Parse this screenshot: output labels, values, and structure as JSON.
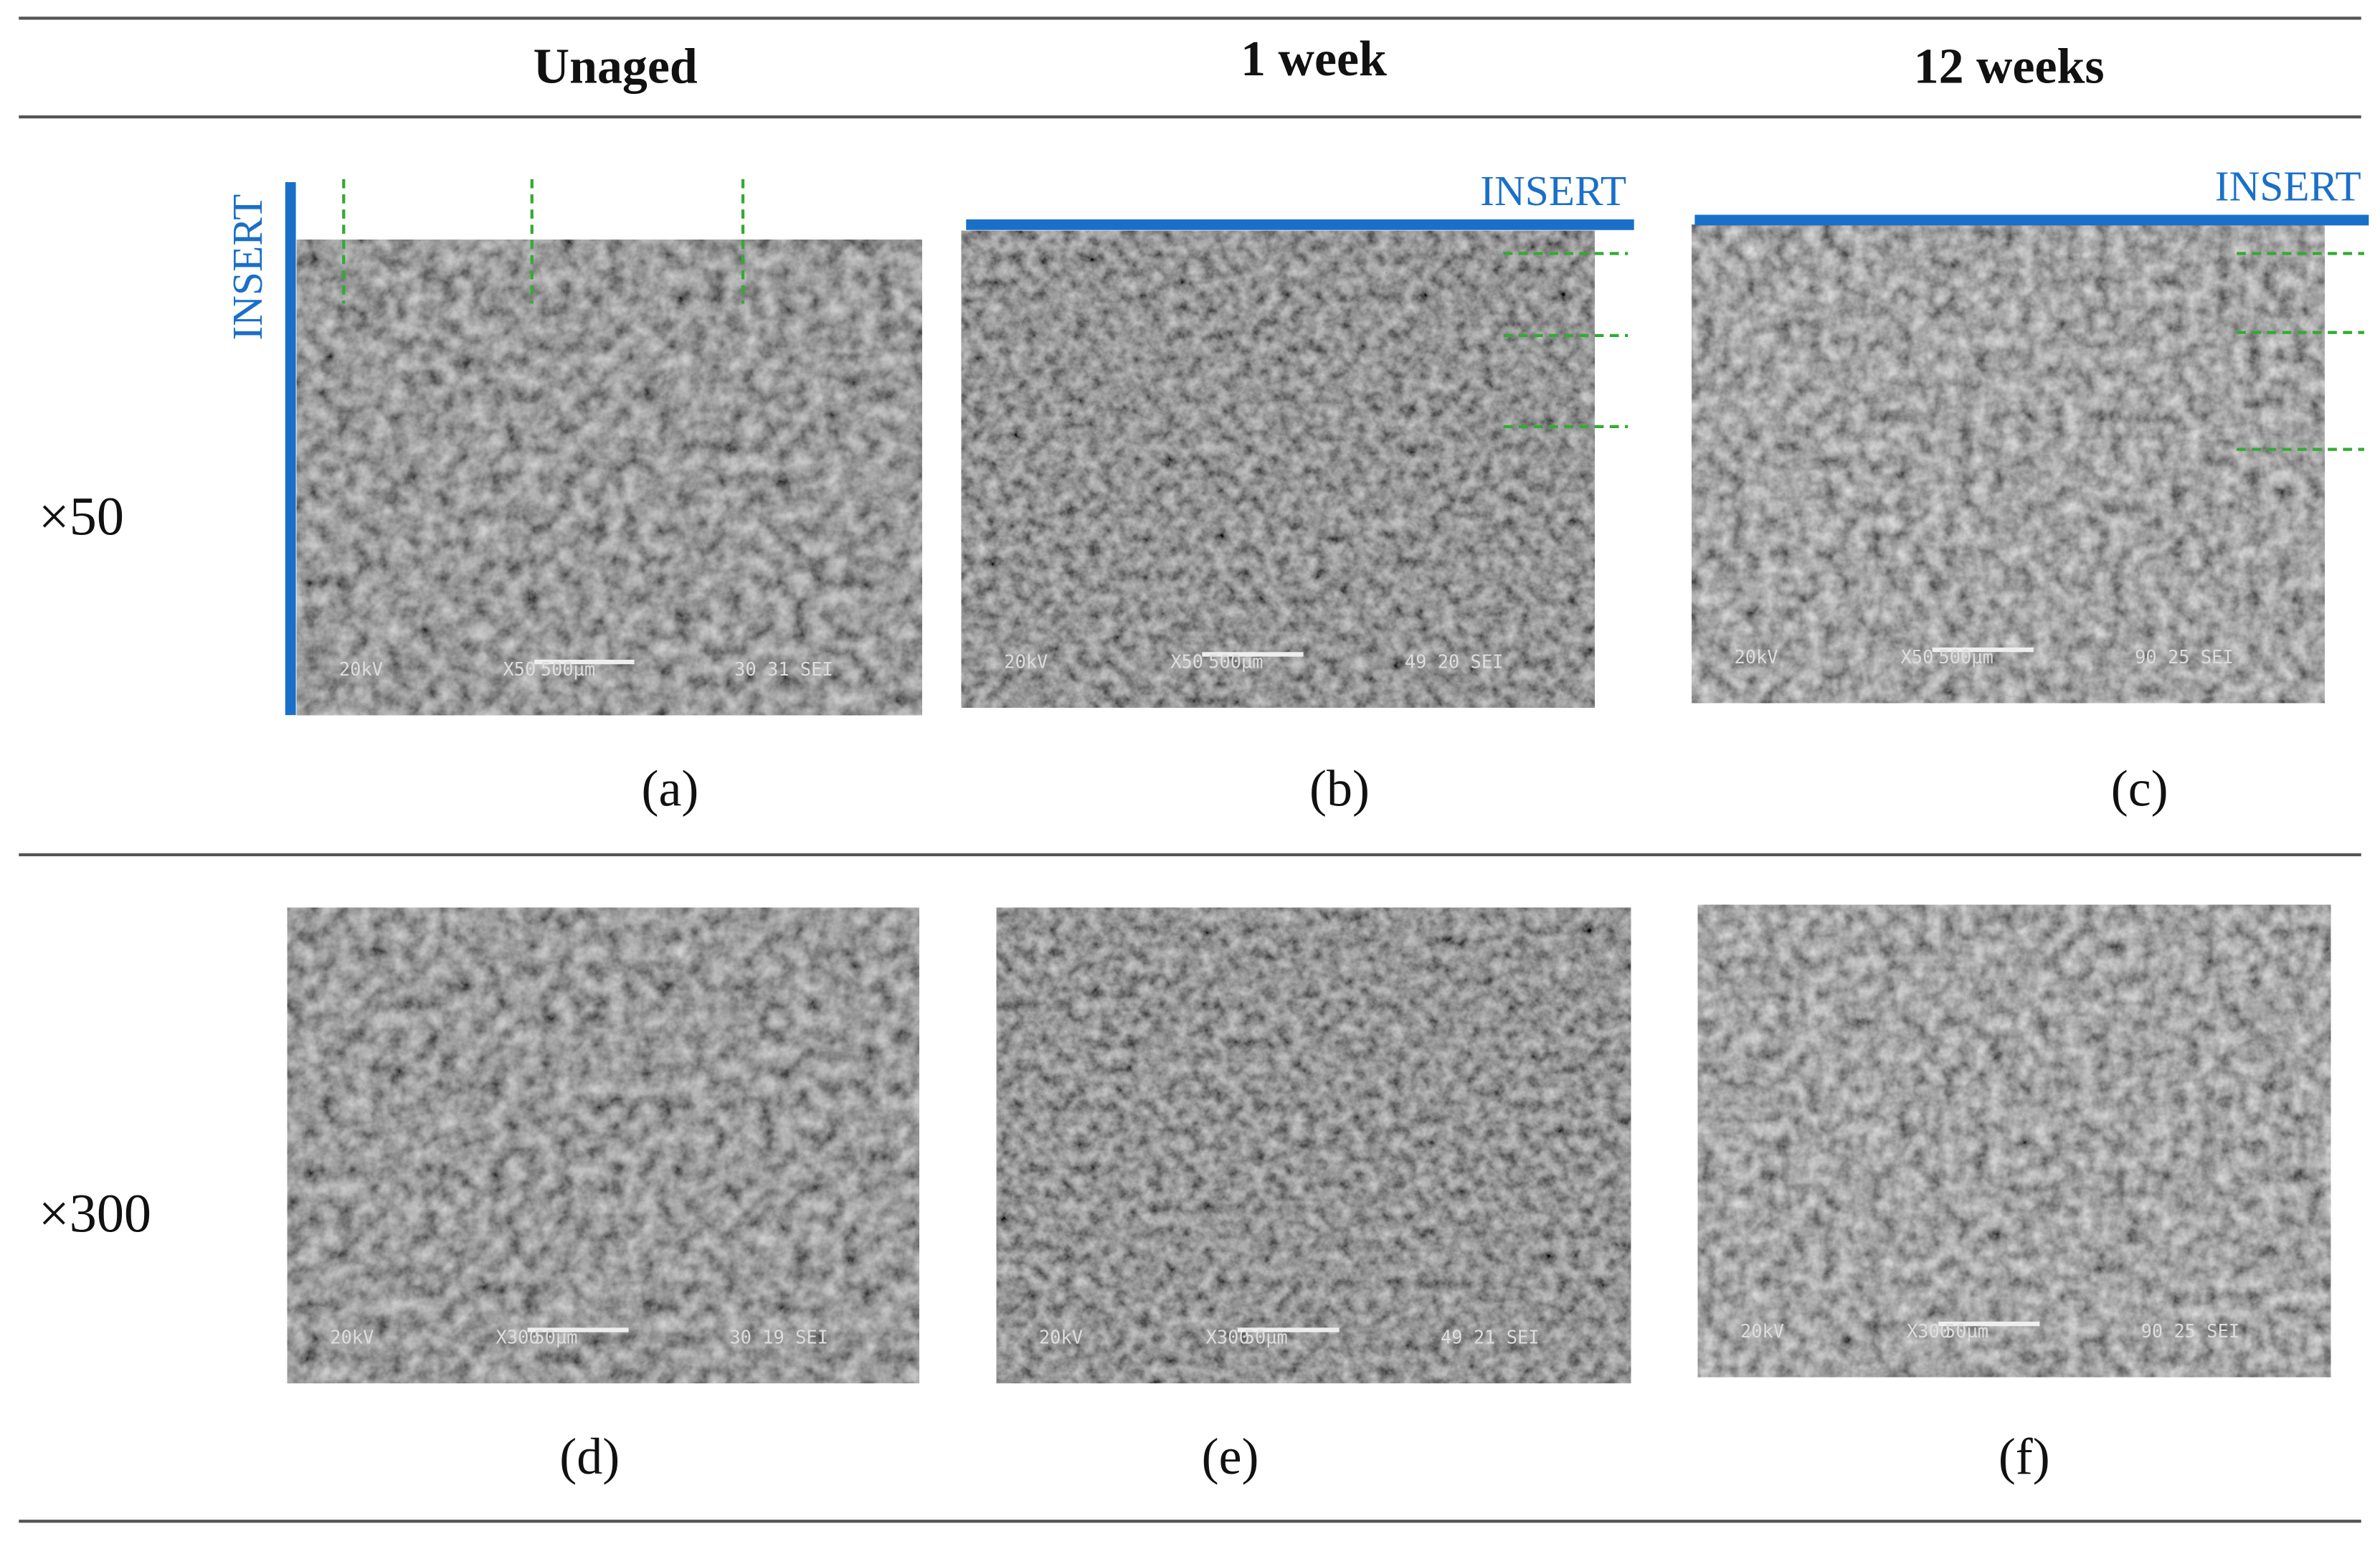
{
  "header": {
    "columns": [
      "Unaged",
      "1 week",
      "12 weeks"
    ]
  },
  "rows": [
    {
      "label": "×50",
      "panels": [
        {
          "caption": "(a)",
          "insert_label": "INSERT",
          "info": [
            "20kV",
            "X50",
            "500µm",
            "30 31 SEI"
          ]
        },
        {
          "caption": "(b)",
          "insert_label": "INSERT",
          "info": [
            "20kV",
            "X50",
            "500µm",
            "49 20 SEI"
          ]
        },
        {
          "caption": "(c)",
          "insert_label": "INSERT",
          "info": [
            "20kV",
            "X50",
            "500µm",
            "90 25 SEI"
          ]
        }
      ]
    },
    {
      "label": "×300",
      "panels": [
        {
          "caption": "(d)",
          "info": [
            "20kV",
            "X300",
            "50µm",
            "30 19 SEI"
          ]
        },
        {
          "caption": "(e)",
          "info": [
            "20kV",
            "X300",
            "50µm",
            "49 21 SEI"
          ]
        },
        {
          "caption": "(f)",
          "info": [
            "20kV",
            "X300",
            "50µm",
            "90 25 SEI"
          ]
        }
      ]
    }
  ]
}
